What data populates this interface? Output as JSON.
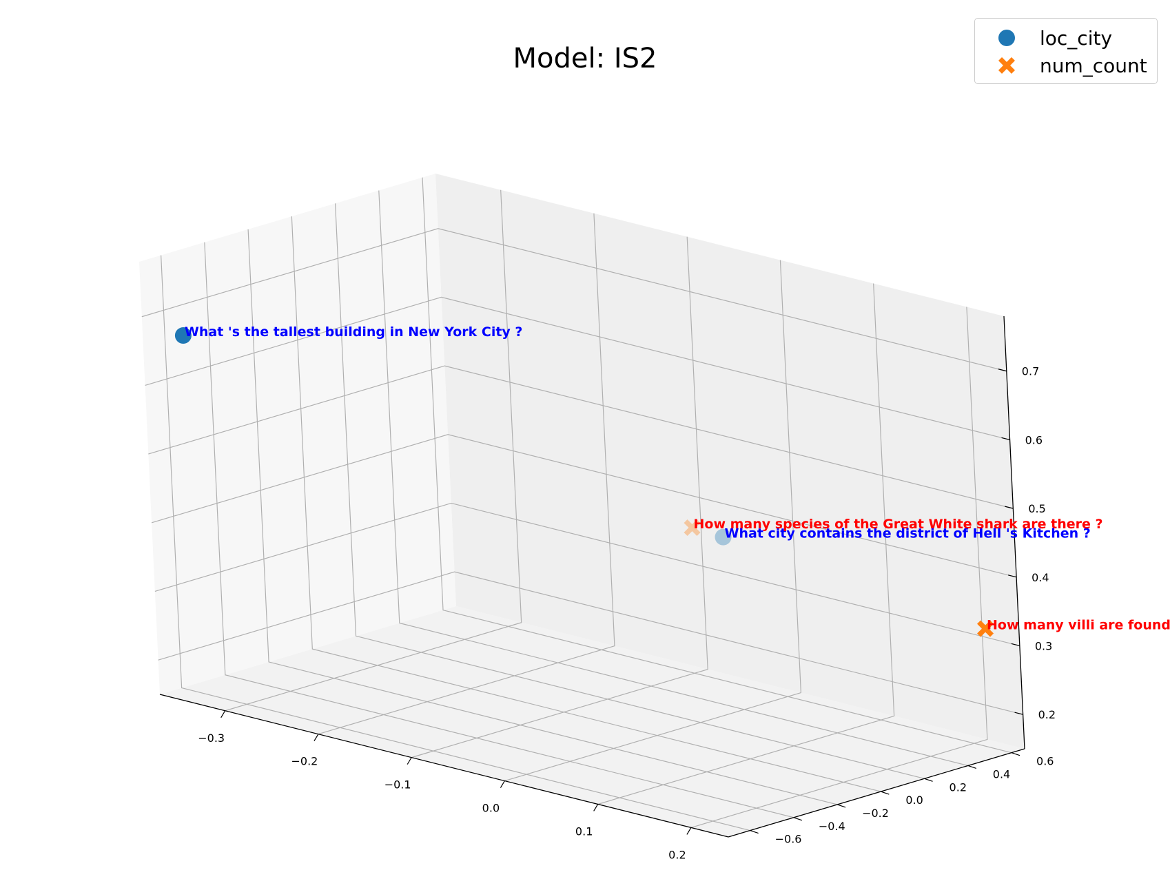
{
  "title": "Model: IS2",
  "legend": [
    {
      "label": "loc_city",
      "color": "#1f77b4",
      "marker": "circle"
    },
    {
      "label": "num_count",
      "color": "#ff7f0e",
      "marker": "x"
    }
  ],
  "chart_data": {
    "type": "scatter",
    "title": "Model: IS2",
    "xlabel": "",
    "ylabel": "",
    "zlabel": "",
    "x_ticks": [
      -0.3,
      -0.2,
      -0.1,
      0.0,
      0.1,
      0.2
    ],
    "y_ticks": [
      -0.6,
      -0.4,
      -0.2,
      0.0,
      0.2,
      0.4,
      0.6
    ],
    "z_ticks": [
      0.2,
      0.3,
      0.4,
      0.5,
      0.6,
      0.7
    ],
    "x_tick_labels": [
      "−0.3",
      "−0.2",
      "−0.1",
      "0.0",
      "0.1",
      "0.2"
    ],
    "y_tick_labels": [
      "−0.6",
      "−0.4",
      "−0.2",
      "0.0",
      "0.2",
      "0.4",
      "0.6"
    ],
    "z_tick_labels": [
      "0.2",
      "0.3",
      "0.4",
      "0.5",
      "0.6",
      "0.7"
    ],
    "grid": true,
    "legend_position": "top-right",
    "series": [
      {
        "name": "loc_city",
        "color": "#1f77b4",
        "label_color": "#0000ff",
        "points": [
          {
            "x": -0.35,
            "y": -0.6,
            "z": 0.67,
            "text": "What 's the tallest building in New York City ?",
            "alpha": 1.0
          },
          {
            "x": -0.05,
            "y": 0.55,
            "z": 0.37,
            "text": "What city contains the district of Hell 's Kitchen ?",
            "alpha": 0.35
          }
        ]
      },
      {
        "name": "num_count",
        "color": "#ff7f0e",
        "label_color": "#ff0000",
        "points": [
          {
            "x": -0.1,
            "y": 0.62,
            "z": 0.36,
            "text": "How many species of the Great White shark are there ?",
            "alpha": 0.35
          },
          {
            "x": 0.35,
            "y": 0.05,
            "z": 0.42,
            "text": "How many villi are found in the small intestine ?",
            "alpha": 1.0
          }
        ]
      }
    ]
  }
}
